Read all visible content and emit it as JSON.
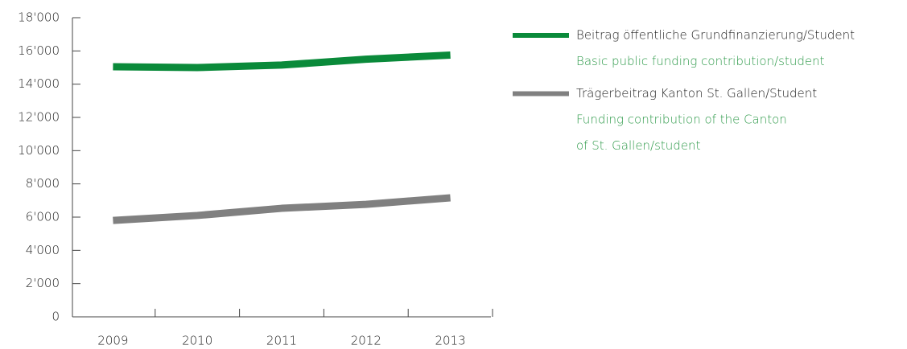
{
  "chart_data": {
    "type": "line",
    "categories": [
      "2009",
      "2010",
      "2011",
      "2012",
      "2013"
    ],
    "series": [
      {
        "name": "Beitrag öffentliche Grundfinanzierung/Student",
        "translation": [
          "Basic public funding contribution/student"
        ],
        "color": "#0a8a3a",
        "values": [
          15050,
          15000,
          15150,
          15500,
          15750
        ]
      },
      {
        "name": "Trägerbeitrag Kanton St. Gallen/Student",
        "translation": [
          "Funding contribution of the Canton",
          "of St. Gallen/student"
        ],
        "color": "#808080",
        "values": [
          5800,
          6100,
          6530,
          6770,
          7160
        ]
      }
    ],
    "ylim": [
      0,
      18000
    ],
    "yticks": [
      0,
      {
        "value": 2000,
        "label": "2'000"
      },
      {
        "value": 4000,
        "label": "4'000"
      },
      {
        "value": 6000,
        "label": "6'000"
      },
      {
        "value": 8000,
        "label": "8'000"
      },
      {
        "value": 10000,
        "label": "10'000"
      },
      {
        "value": 12000,
        "label": "12'000"
      },
      {
        "value": 14000,
        "label": "14'000"
      },
      {
        "value": 16000,
        "label": "16'000"
      },
      {
        "value": 18000,
        "label": "18'000"
      }
    ],
    "legend": "right",
    "translation_color": "#2e9a4a"
  }
}
